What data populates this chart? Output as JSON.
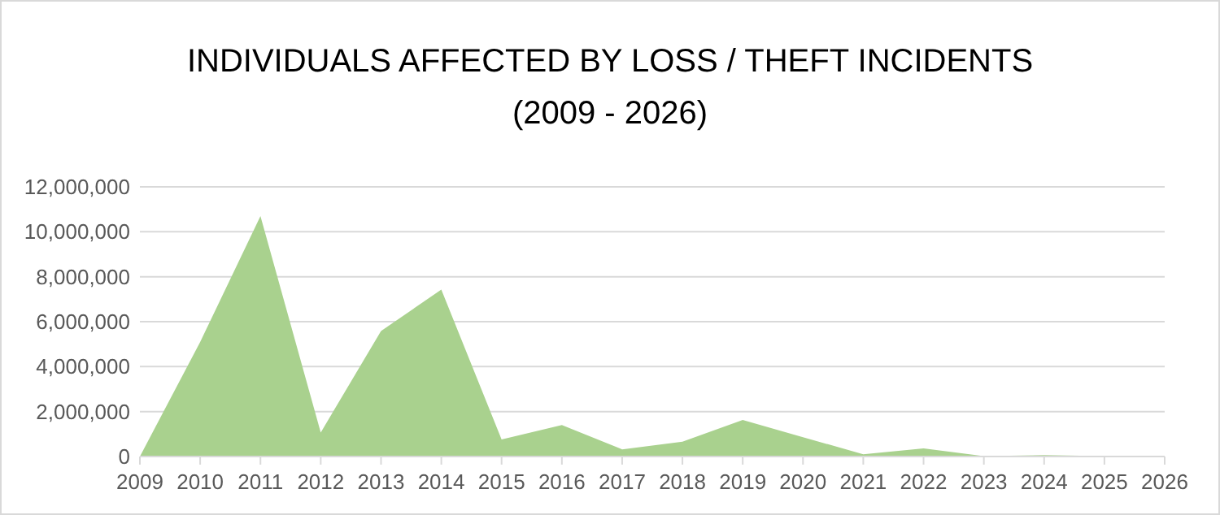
{
  "chart_data": {
    "type": "area",
    "title": "INDIVIDUALS AFFECTED BY LOSS / THEFT INCIDENTS",
    "subtitle": "(2009 - 2026)",
    "categories": [
      "2009",
      "2010",
      "2011",
      "2012",
      "2013",
      "2014",
      "2015",
      "2016",
      "2017",
      "2018",
      "2019",
      "2020",
      "2021",
      "2022",
      "2023",
      "2024",
      "2025",
      "2026"
    ],
    "series": [
      {
        "color": "#a9d18e",
        "values": [
          0,
          5100000,
          10700000,
          1070000,
          5580000,
          7430000,
          760000,
          1400000,
          320000,
          660000,
          1630000,
          860000,
          100000,
          360000,
          20000,
          60000,
          20000,
          0
        ]
      }
    ],
    "ylim": [
      0,
      12000000
    ],
    "yticks": [
      {
        "value": 0,
        "label": "0"
      },
      {
        "value": 2000000,
        "label": "2,000,000"
      },
      {
        "value": 4000000,
        "label": "4,000,000"
      },
      {
        "value": 6000000,
        "label": "6,000,000"
      },
      {
        "value": 8000000,
        "label": "8,000,000"
      },
      {
        "value": 10000000,
        "label": "10,000,000"
      },
      {
        "value": 12000000,
        "label": "12,000,000"
      }
    ],
    "grid": "y"
  }
}
